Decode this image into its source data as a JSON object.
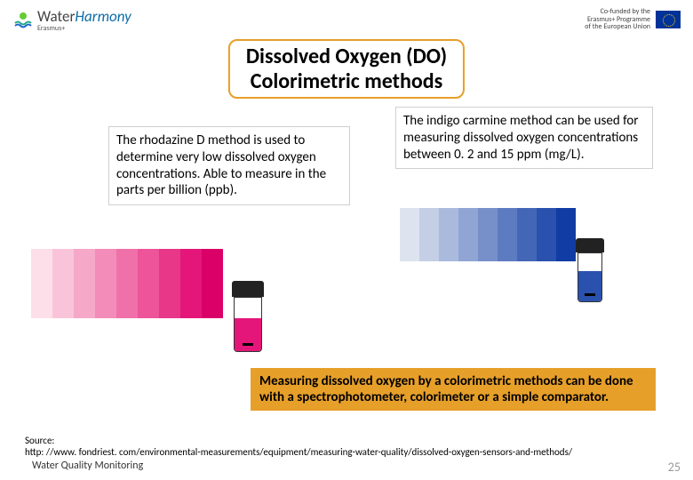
{
  "header": {
    "brand_main": "Water",
    "brand_italic": "Harmony",
    "brand_sub": "Erasmus+",
    "cofunded": "Co-funded by the\nErasmus+ Programme\nof the European Union"
  },
  "title": {
    "line1": "Dissolved Oxygen (DO)",
    "line2": "Colorimetric methods",
    "border_color": "#e69f29"
  },
  "rhodazine": {
    "text": "The rhodazine D method is used to determine very low dissolved oxygen concentrations. Able to measure in the parts per billion (ppb).",
    "scale_colors": [
      "#fcdfe9",
      "#f9c4d9",
      "#f6a8c9",
      "#f38cb9",
      "#f070a9",
      "#ed5499",
      "#e83689",
      "#e41679",
      "#da0068"
    ],
    "vial_liquid": "#e41679"
  },
  "indigo": {
    "text": "The indigo carmine method can be used for measuring dissolved oxygen concentrations between 0. 2 and 15 ppm (mg/L).",
    "scale_colors": [
      "#dde4f0",
      "#c4cfe6",
      "#aabadd",
      "#90a5d3",
      "#7790ca",
      "#5d7bc0",
      "#4466b7",
      "#2a51ad",
      "#103ca4"
    ],
    "vial_liquid": "#2a51ad"
  },
  "summary": "Measuring dissolved oxygen by a colorimetric methods can be done with a spectrophotometer, colorimeter or a simple comparator.",
  "source": {
    "label": "Source:",
    "url": "http: //www. fondriest. com/environmental-measurements/equipment/measuring-water-quality/dissolved-oxygen-sensors-and-methods/"
  },
  "footer": {
    "text": "Water Quality Monitoring",
    "page": "25"
  }
}
